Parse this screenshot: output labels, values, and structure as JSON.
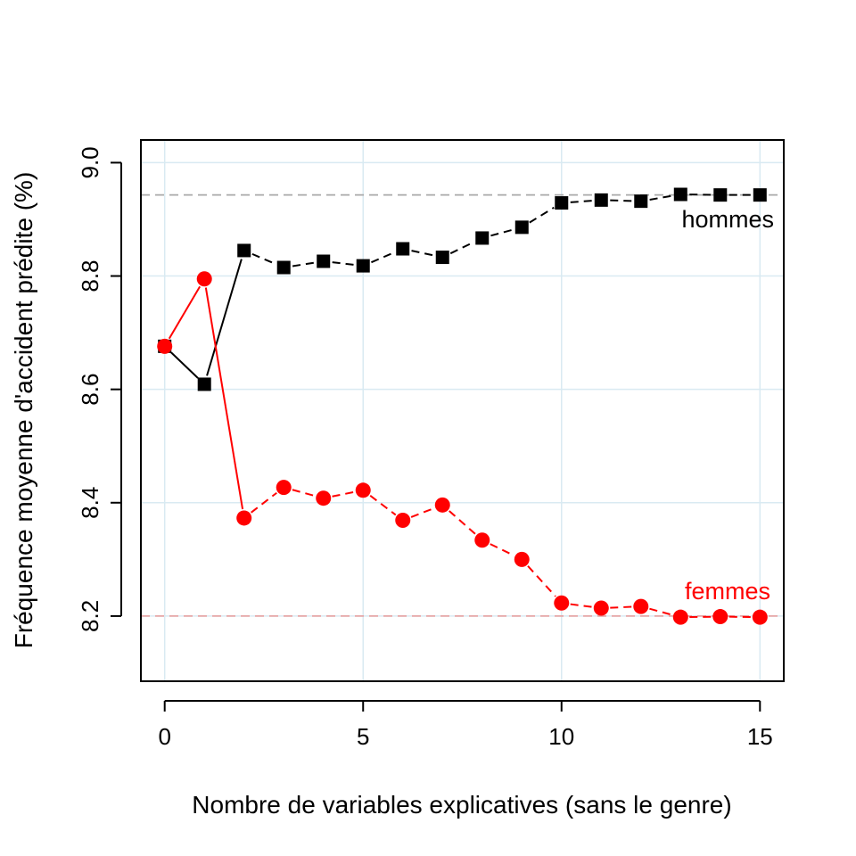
{
  "chart_data": {
    "type": "line",
    "title": "",
    "xlabel": "Nombre de variables explicatives (sans le genre)",
    "ylabel": "Fréquence moyenne d'accident prédite (%)",
    "xlim": [
      -0.6,
      15.6
    ],
    "ylim": [
      8.085,
      9.04
    ],
    "xticks": [
      0,
      5,
      10,
      15
    ],
    "yticks": [
      8.2,
      8.4,
      8.6,
      8.8,
      9.0
    ],
    "ytick_labels": [
      "8.2",
      "8.4",
      "8.6",
      "8.8",
      "9.0"
    ],
    "grid": true,
    "x": [
      0,
      1,
      2,
      3,
      4,
      5,
      6,
      7,
      8,
      9,
      10,
      11,
      12,
      13,
      14,
      15
    ],
    "series": [
      {
        "name": "hommes",
        "marker": "square",
        "color": "#000000",
        "values": [
          8.676,
          8.609,
          8.845,
          8.815,
          8.826,
          8.818,
          8.848,
          8.833,
          8.867,
          8.886,
          8.929,
          8.934,
          8.932,
          8.944,
          8.943,
          8.943
        ]
      },
      {
        "name": "femmes",
        "marker": "circle",
        "color": "#ff0000",
        "values": [
          8.676,
          8.795,
          8.373,
          8.427,
          8.408,
          8.422,
          8.369,
          8.396,
          8.334,
          8.3,
          8.223,
          8.214,
          8.217,
          8.198,
          8.199,
          8.198
        ]
      }
    ],
    "reference_lines": [
      {
        "value": 8.943,
        "color": "#a9a9a9"
      },
      {
        "value": 8.2,
        "color": "#e6a6a6"
      }
    ],
    "colors": {
      "grid": "#d9eaf2",
      "axis": "#000000"
    }
  }
}
